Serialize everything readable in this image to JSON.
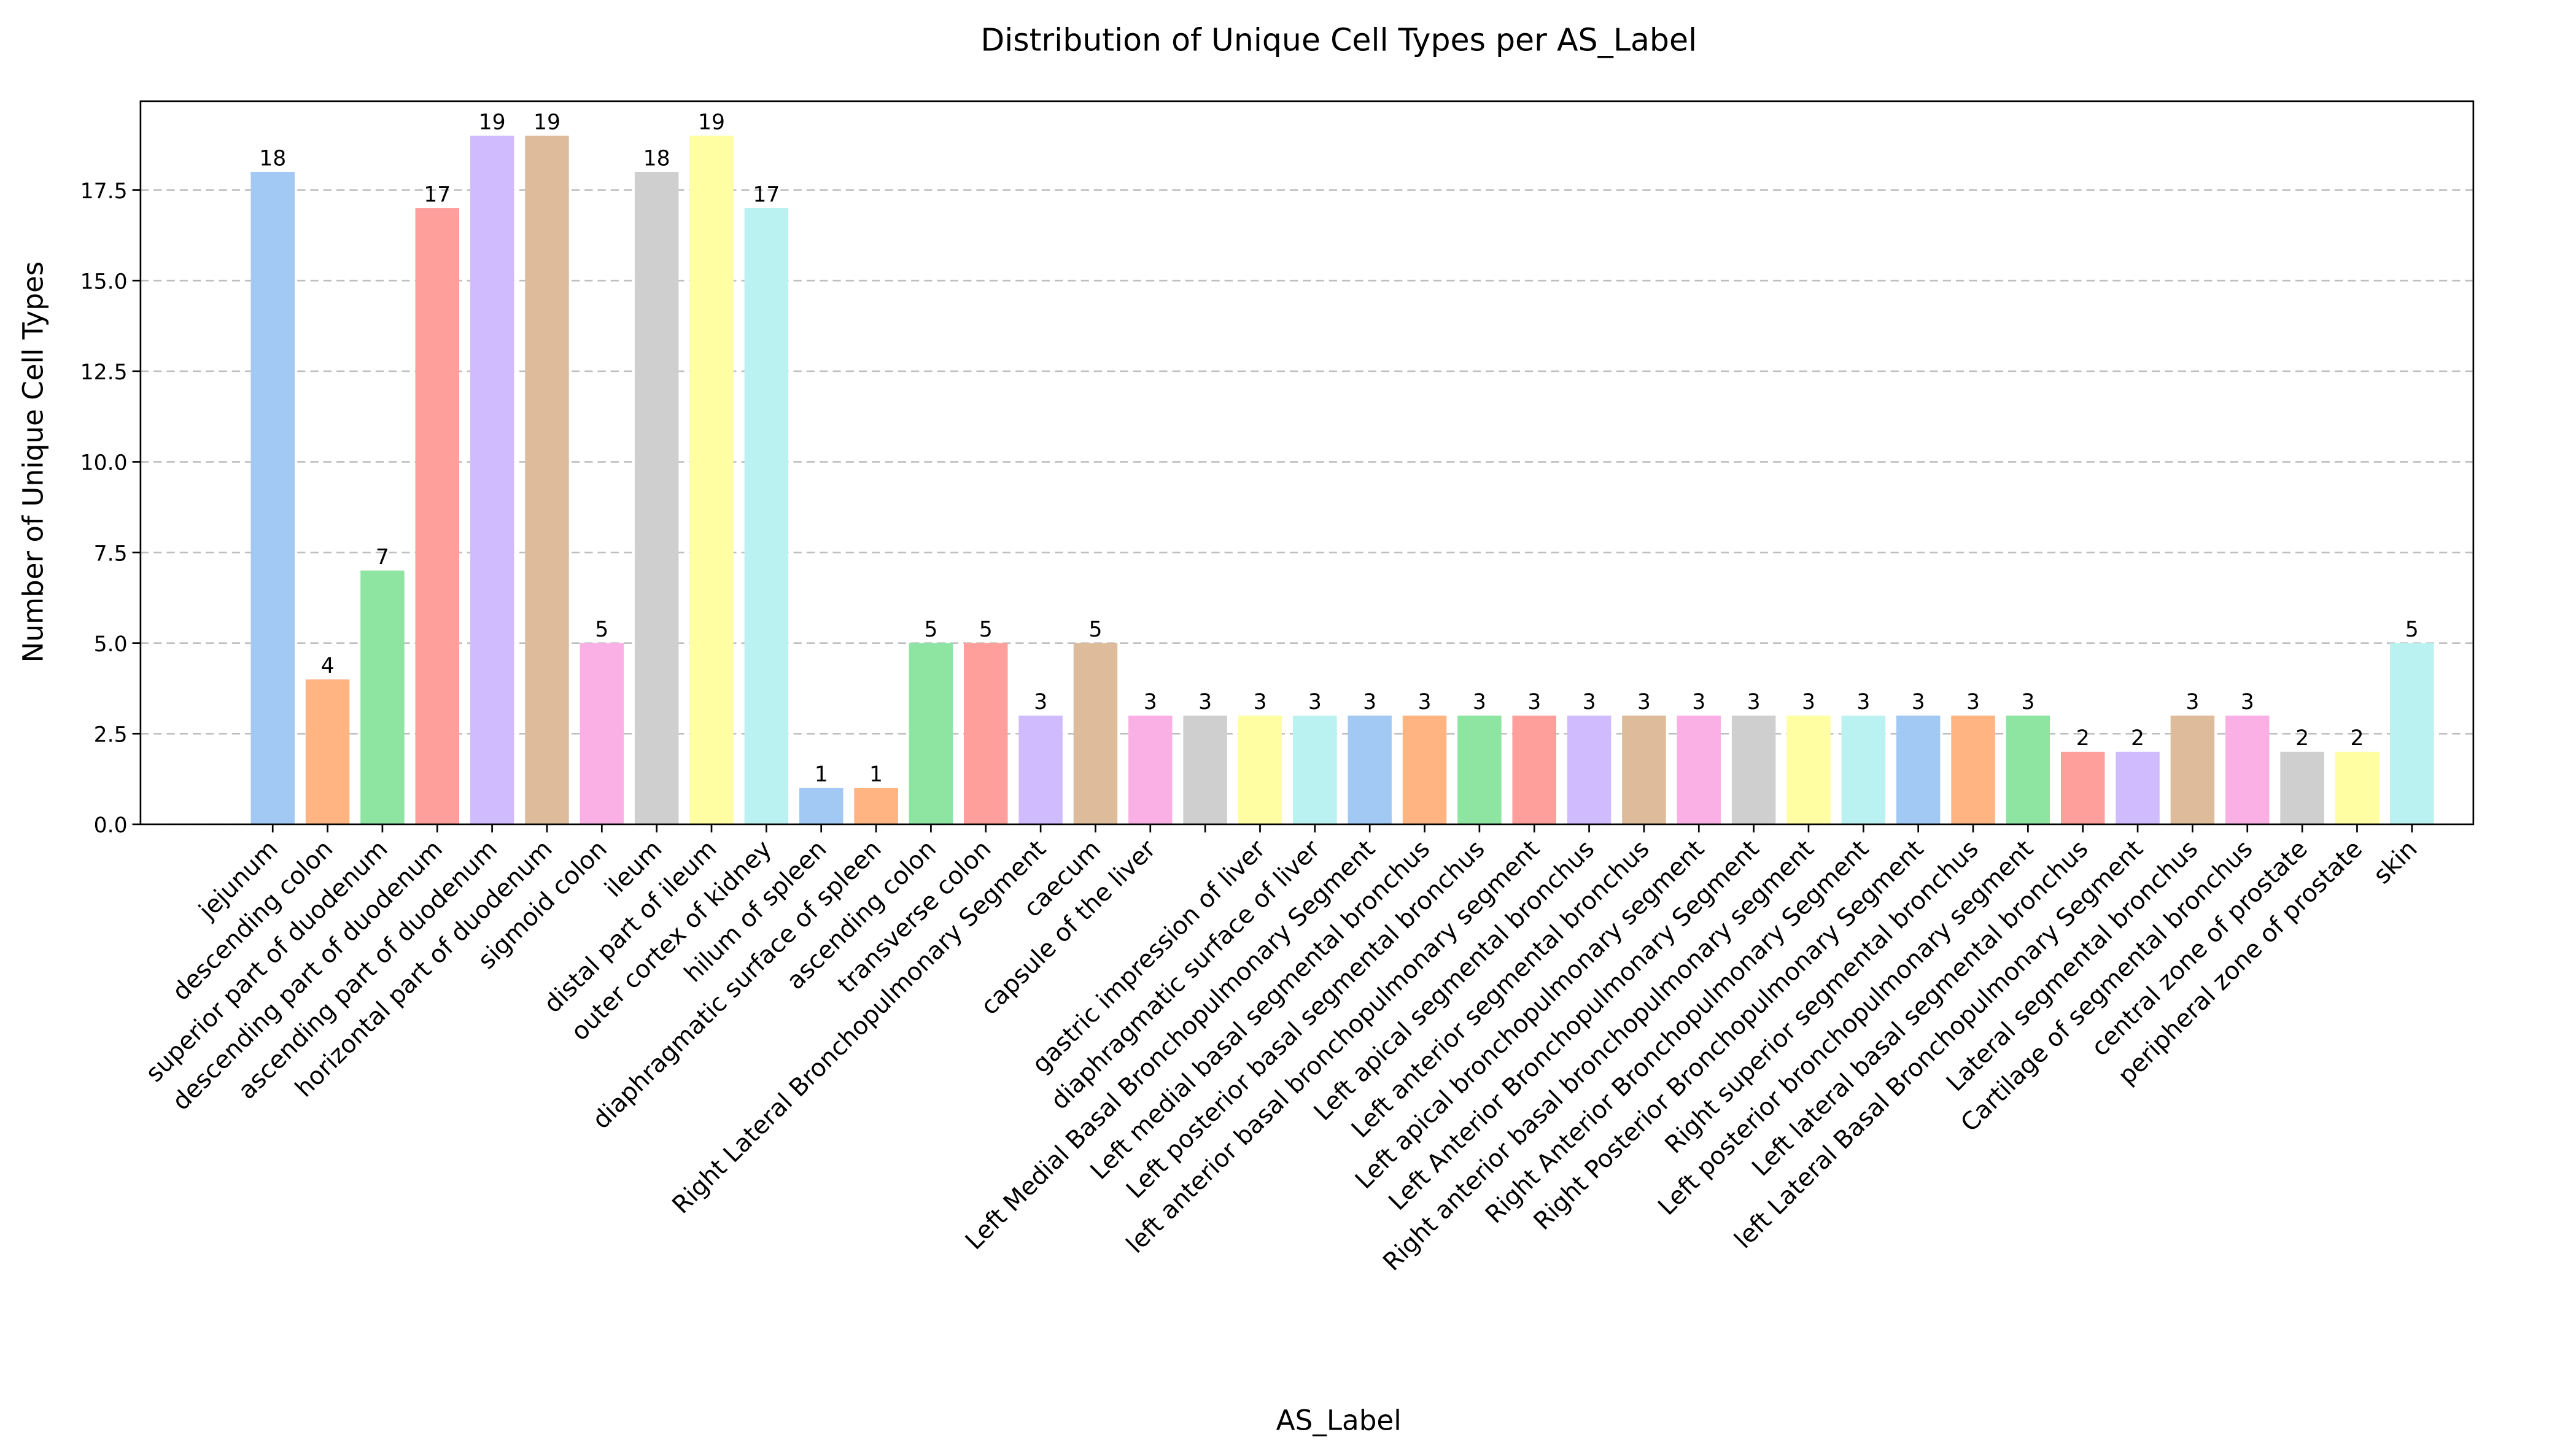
{
  "chart_data": {
    "type": "bar",
    "title": "Distribution of Unique Cell Types per AS_Label",
    "x_label": "AS_Label",
    "y_label": "Number of Unique Cell Types",
    "categories": [
      "jejunum",
      "descending colon",
      "superior part of duodenum",
      "descending part of duodenum",
      "ascending part of duodenum",
      "horizontal part of duodenum",
      "sigmoid colon",
      "ileum",
      "distal part of ileum",
      "outer cortex of kidney",
      "hilum of spleen",
      "diaphragmatic surface of spleen",
      "ascending colon",
      "transverse colon",
      "Right Lateral Bronchopulmonary Segment",
      "caecum",
      "capsule of the liver",
      null,
      "gastric impression of liver",
      "diaphragmatic surface of liver",
      "Left Medial Basal Bronchopulmonary Segment",
      "Left medial basal segmental bronchus",
      "Left posterior basal segmental bronchus",
      "left anterior basal bronchopulmonary segment",
      "Left apical segmental bronchus",
      "Left anterior segmental bronchus",
      "Left apical bronchopulmonary segment",
      "Left Anterior Bronchopulmonary Segment",
      "Right anterior basal bronchopulmonary segment",
      "Right Anterior Bronchopulmonary Segment",
      "Right Posterior Bronchopulmonary Segment",
      "Right superior segmental bronchus",
      "Left posterior bronchopulmonary segment",
      "Left lateral basal segmental bronchus",
      "left Lateral Basal Bronchopulmonary Segment",
      "Lateral segmental bronchus",
      "Cartilage of segmental bronchus",
      "central zone of prostate",
      "peripheral zone of prostate",
      "skin"
    ],
    "values": [
      18,
      4,
      7,
      17,
      19,
      19,
      5,
      18,
      19,
      17,
      1,
      1,
      5,
      5,
      3,
      5,
      3,
      3,
      3,
      3,
      3,
      3,
      3,
      3,
      3,
      3,
      3,
      3,
      3,
      3,
      3,
      3,
      3,
      2,
      2,
      3,
      3,
      2,
      2,
      5
    ],
    "palette": [
      "#a1c9f4",
      "#ffb482",
      "#8de5a1",
      "#ff9f9b",
      "#d0bbff",
      "#debb9b",
      "#fab0e4",
      "#cfcfcf",
      "#fffea3",
      "#b9f2f0"
    ],
    "ylim": [
      0,
      19.95
    ],
    "yticks": [
      {
        "value": 0,
        "label": "0.0"
      },
      2.5,
      {
        "value": 5,
        "label": "5.0"
      },
      7.5,
      {
        "value": 10,
        "label": "10.0"
      },
      12.5,
      {
        "value": 15,
        "label": "15.0"
      },
      17.5
    ],
    "grid": true
  }
}
